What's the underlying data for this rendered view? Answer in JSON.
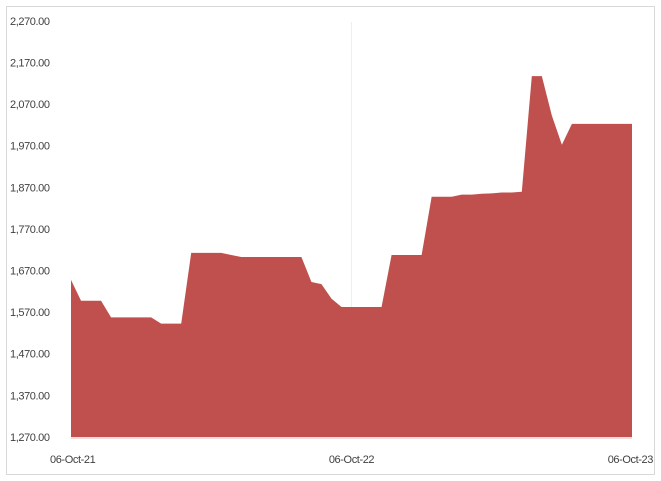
{
  "chart_data": {
    "type": "area",
    "color": "#c0504d",
    "categories": [
      "06-Oct-21",
      null,
      null,
      null,
      null,
      null,
      null,
      null,
      null,
      null,
      null,
      null,
      null,
      null,
      null,
      null,
      null,
      null,
      null,
      null,
      null,
      null,
      null,
      null,
      null,
      null,
      null,
      null,
      "06-Oct-22",
      null,
      null,
      null,
      null,
      null,
      null,
      null,
      null,
      null,
      null,
      null,
      null,
      null,
      null,
      null,
      null,
      null,
      null,
      null,
      null,
      null,
      null,
      null,
      null,
      null,
      null,
      null,
      "06-Oct-23"
    ],
    "values": [
      1650,
      1600,
      1600,
      1600,
      1560,
      1560,
      1560,
      1560,
      1560,
      1545,
      1545,
      1545,
      1715,
      1715,
      1715,
      1715,
      1710,
      1705,
      1705,
      1705,
      1705,
      1705,
      1705,
      1705,
      1645,
      1640,
      1605,
      1585,
      1585,
      1585,
      1585,
      1585,
      1710,
      1710,
      1710,
      1710,
      1850,
      1850,
      1850,
      1855,
      1855,
      1857,
      1858,
      1860,
      1860,
      1862,
      2140,
      2140,
      2045,
      1975,
      2025,
      2025,
      2025,
      2025,
      2025,
      2025,
      2025
    ],
    "ylim": [
      1270,
      2270
    ],
    "yticks": [
      {
        "value": 1270,
        "label": "1,270.00"
      },
      {
        "value": 1370,
        "label": "1,370.00"
      },
      {
        "value": 1470,
        "label": "1,470.00"
      },
      {
        "value": 1570,
        "label": "1,570.00"
      },
      {
        "value": 1670,
        "label": "1,670.00"
      },
      {
        "value": 1770,
        "label": "1,770.00"
      },
      {
        "value": 1870,
        "label": "1,870.00"
      },
      {
        "value": 1970,
        "label": "1,970.00"
      },
      {
        "value": 2070,
        "label": "2,070.00"
      },
      {
        "value": 2170,
        "label": "2,170.00"
      },
      {
        "value": 2270,
        "label": "2,270.00"
      }
    ],
    "grid": "x"
  }
}
